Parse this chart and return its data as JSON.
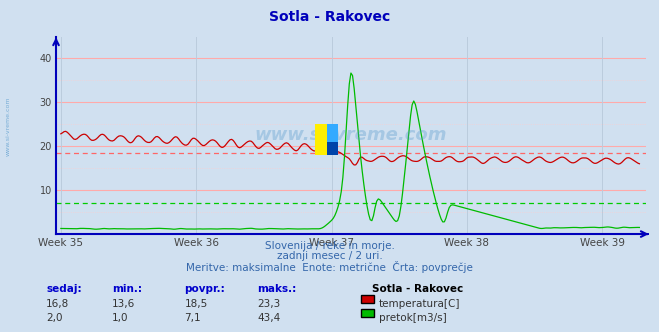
{
  "title": "Sotla - Rakovec",
  "background_color": "#d0e0f0",
  "plot_bg_color": "#d0e0f0",
  "x_weeks": [
    "Week 35",
    "Week 36",
    "Week 37",
    "Week 38",
    "Week 39"
  ],
  "x_week_positions": [
    0,
    84,
    168,
    252,
    336
  ],
  "n_points": 360,
  "ylim": [
    0,
    45
  ],
  "yticks": [
    10,
    20,
    30,
    40
  ],
  "temp_avg": 18.5,
  "flow_avg": 7.1,
  "temp_color": "#cc0000",
  "flow_color": "#00bb00",
  "avg_temp_color": "#ff6666",
  "avg_flow_color": "#00cc00",
  "watermark_color": "#5599cc",
  "subtitle1": "Slovenija / reke in morje.",
  "subtitle2": "zadnji mesec / 2 uri.",
  "subtitle3": "Meritve: maksimalne  Enote: metrične  Črta: povprečje",
  "legend_title": "Sotla - Rakovec",
  "legend_items": [
    {
      "label": "temperatura[C]",
      "color": "#cc0000"
    },
    {
      "label": "pretok[m3/s]",
      "color": "#00bb00"
    }
  ],
  "stats_headers": [
    "sedaj:",
    "min.:",
    "povpr.:",
    "maks.:"
  ],
  "stats_temp": [
    "16,8",
    "13,6",
    "18,5",
    "23,3"
  ],
  "stats_flow": [
    "2,0",
    "1,0",
    "7,1",
    "43,4"
  ],
  "axis_color": "#0000bb",
  "grid_color": "#ffaaaa",
  "grid_minor_color": "#ffcccc",
  "vgrid_color": "#bbccdd"
}
